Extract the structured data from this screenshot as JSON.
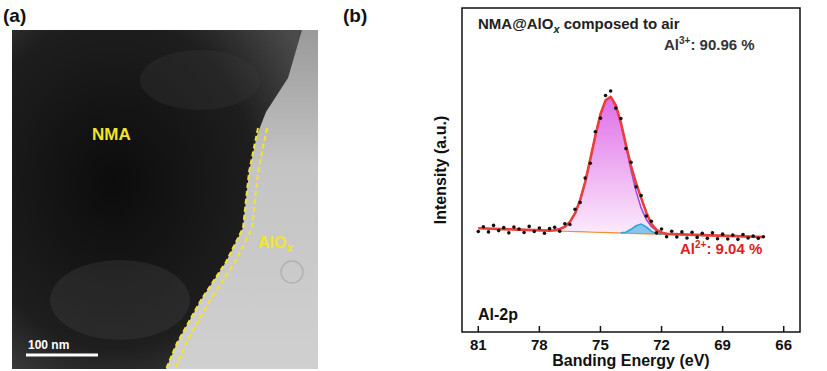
{
  "panel_a": {
    "letter": "(a)",
    "core_label": "NMA",
    "shell_label": [
      "AlO",
      "x"
    ],
    "scale_bar": "100 nm"
  },
  "panel_b": {
    "letter": "(b)"
  },
  "chart_data": {
    "type": "line",
    "title": [
      "NMA@AlO",
      "x",
      " composed to air"
    ],
    "x_label": "Banding Energy (eV)",
    "y_label": "Intensity (a.u.)",
    "xlim": [
      81.8,
      65.2
    ],
    "xticks": [
      81,
      78,
      75,
      72,
      69,
      66
    ],
    "ylim": [
      0,
      100
    ],
    "yticks": [],
    "tick_labels": "x",
    "grid": false,
    "annotations": [
      {
        "text": [
          "Al",
          "3+",
          ": 90.96 %"
        ],
        "color": "#333333"
      },
      {
        "text": [
          "Al",
          "2+",
          ": 9.04 %"
        ],
        "color": "#e0201e"
      },
      {
        "text": [
          "Al-2p"
        ],
        "color": "#111111"
      }
    ],
    "series": [
      {
        "type": "line",
        "color": "#f0923a",
        "x": [
          81,
          75,
          72,
          67
        ],
        "values": [
          32.0,
          30.8,
          30.2,
          29.3
        ]
      },
      {
        "type": "area",
        "color": "#a14ad8",
        "x": [
          77.25,
          77,
          76.75,
          76.5,
          76.25,
          76,
          75.75,
          75.5,
          75.25,
          75,
          74.75,
          74.5,
          74.25,
          74,
          73.75,
          73.5,
          73.25,
          73,
          72.75,
          72.5,
          72.25,
          72,
          71.75
        ],
        "values": [
          31.4,
          31.8,
          32.5,
          34.0,
          36.6,
          40.7,
          46.3,
          53.3,
          60.6,
          67.2,
          71.5,
          72.6,
          70.0,
          64.6,
          57.4,
          50.0,
          43.4,
          38.3,
          34.8,
          32.5,
          31.3,
          30.6,
          30.3
        ]
      },
      {
        "type": "area",
        "color": "#2aa7dc",
        "x": [
          74,
          73.75,
          73.5,
          73.25,
          73,
          72.75,
          72.5,
          72.25,
          72
        ],
        "values": [
          30.6,
          30.8,
          31.7,
          32.8,
          33.3,
          32.4,
          31.1,
          30.4,
          30.2
        ]
      },
      {
        "type": "line",
        "color": "#e8403a",
        "x": [
          81,
          79,
          77.5,
          77.25,
          77,
          76.75,
          76.5,
          76.25,
          76,
          75.75,
          75.5,
          75.25,
          75,
          74.75,
          74.5,
          74.25,
          74,
          73.75,
          73.5,
          73.25,
          73,
          72.75,
          72.5,
          72.25,
          72,
          71.75,
          70,
          68,
          67
        ],
        "values": [
          32.0,
          31.6,
          31.3,
          31.4,
          31.8,
          32.5,
          34.0,
          36.6,
          40.7,
          46.3,
          53.3,
          60.6,
          67.2,
          71.5,
          72.6,
          70.0,
          64.7,
          57.8,
          51.3,
          45.9,
          41.3,
          36.9,
          33.4,
          31.5,
          30.7,
          30.3,
          29.9,
          29.5,
          29.3
        ]
      },
      {
        "type": "scatter",
        "color": "#111111",
        "marker": "circle",
        "x": [
          81,
          80.75,
          80.5,
          80.25,
          80,
          79.75,
          79.5,
          79.25,
          79,
          78.75,
          78.5,
          78.25,
          78,
          77.75,
          77.5,
          77.25,
          77,
          76.75,
          76.5,
          76.25,
          76,
          75.75,
          75.5,
          75.25,
          75,
          74.75,
          74.5,
          74.25,
          74,
          73.75,
          73.5,
          73.25,
          73,
          72.75,
          72.5,
          72.25,
          72,
          71.75,
          71.5,
          71.25,
          71,
          70.75,
          70.5,
          70.25,
          70,
          69.75,
          69.5,
          69.25,
          69,
          68.75,
          68.5,
          68.25,
          68,
          67.75,
          67.5,
          67.25,
          67
        ],
        "values": [
          31.0,
          32.5,
          30.9,
          32.9,
          31.3,
          32.2,
          30.6,
          32.4,
          31.8,
          30.7,
          32.6,
          31.0,
          32.1,
          30.5,
          31.9,
          32.3,
          31.1,
          33.4,
          33.2,
          37.9,
          40.0,
          47.5,
          52.1,
          61.8,
          66.0,
          73.0,
          74.4,
          69.1,
          65.9,
          56.6,
          52.4,
          44.8,
          42.1,
          35.8,
          34.2,
          30.6,
          31.8,
          29.4,
          31.1,
          29.3,
          30.9,
          29.0,
          30.8,
          29.2,
          30.5,
          28.9,
          30.6,
          28.8,
          30.2,
          28.7,
          29.9,
          28.6,
          30.1,
          29.0,
          29.6,
          28.9,
          29.4
        ]
      }
    ]
  }
}
